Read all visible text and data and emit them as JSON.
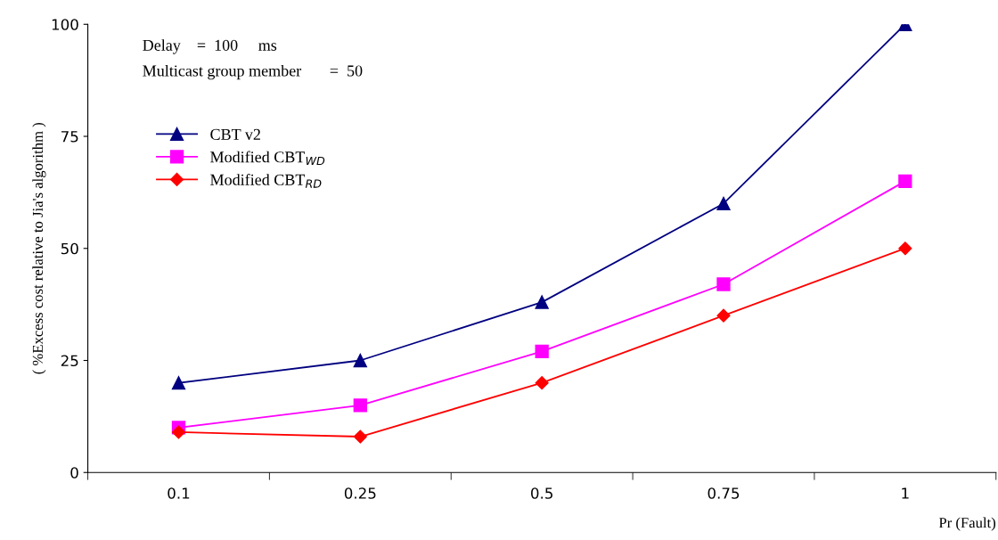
{
  "chart_data": {
    "type": "line",
    "xlabel": "Pr (Fault)",
    "ylabel": "( %Excess cost relative to Jia's algorithm )",
    "annotations": [
      "Delay    =  100     ms",
      "Multicast group member       =  50"
    ],
    "categories": [
      "0.1",
      "0.25",
      "0.5",
      "0.75",
      "1"
    ],
    "series": [
      {
        "name": "CBT v2",
        "color": "#000080",
        "marker": "triangle",
        "values": [
          20,
          25,
          38,
          60,
          100
        ]
      },
      {
        "name": "Modified CBT$_{WD}$",
        "color": "#ff00ff",
        "marker": "square",
        "values": [
          10,
          15,
          27,
          42,
          65
        ]
      },
      {
        "name": "Modified CBT$_{RD}$",
        "color": "#ff0000",
        "marker": "diamond",
        "values": [
          9,
          8,
          20,
          35,
          50
        ]
      }
    ],
    "ylim": [
      0,
      100
    ],
    "yticks": [
      0,
      25,
      50,
      75,
      100
    ],
    "grid": false,
    "legend": "top left",
    "line_style": "solid"
  }
}
